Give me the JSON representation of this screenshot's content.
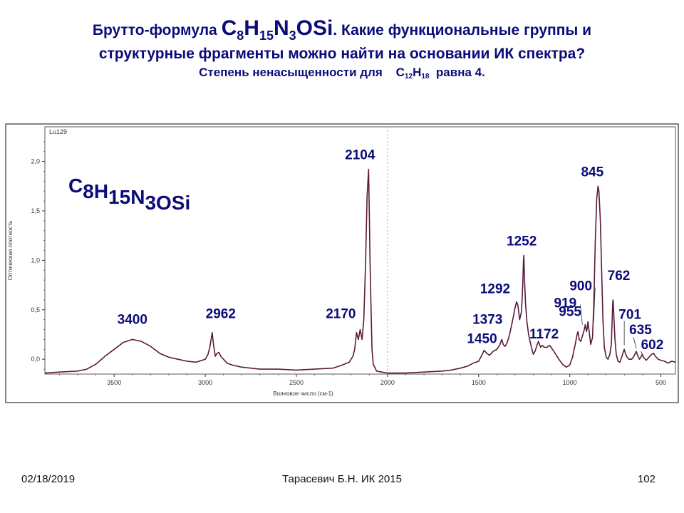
{
  "title": {
    "line1_prefix": "Брутто-формула ",
    "formula_parts": [
      {
        "t": "C",
        "s": "8"
      },
      {
        "t": "H",
        "s": "15"
      },
      {
        "t": "N",
        "s": "3"
      },
      {
        "t": "OSi",
        "s": ""
      }
    ],
    "line1_suffix": ". Какие функциональные группы и",
    "line2": "структурные фрагменты можно найти на основании ИК спектра?",
    "line3_prefix": "Степень ненасыщенности для    ",
    "line3_formula_parts": [
      {
        "t": "C",
        "s": "12"
      },
      {
        "t": "H",
        "s": "18"
      }
    ],
    "line3_suffix": "  равна 4."
  },
  "chart_data": {
    "type": "line",
    "sample_label": "Lu129",
    "formula_label_parts": [
      {
        "t": "C",
        "s": "8"
      },
      {
        "t": "H",
        "s": "15"
      },
      {
        "t": "N",
        "s": "3"
      },
      {
        "t": "OSi",
        "s": ""
      }
    ],
    "xlabel": "Волновое число (см-1)",
    "ylabel": "Оптическая плотность",
    "x_reversed": true,
    "xlim": [
      3880,
      420
    ],
    "ylim": [
      -0.15,
      2.35
    ],
    "xticks": [
      3500,
      3000,
      2500,
      2000,
      1500,
      1000,
      500
    ],
    "yticks": [
      {
        "v": 0.0,
        "label": "0,0"
      },
      {
        "v": 0.5,
        "label": "0,5"
      },
      {
        "v": 1.0,
        "label": "1,0"
      },
      {
        "v": 1.5,
        "label": "1,5"
      },
      {
        "v": 2.0,
        "label": "2,0"
      }
    ],
    "dashed_line_x": 2000,
    "line_color": "#5a1a3c",
    "label_color": "#0b0b7a",
    "series": [
      {
        "points": [
          [
            3880,
            -0.14
          ],
          [
            3800,
            -0.13
          ],
          [
            3700,
            -0.12
          ],
          [
            3650,
            -0.1
          ],
          [
            3600,
            -0.05
          ],
          [
            3550,
            0.03
          ],
          [
            3500,
            0.1
          ],
          [
            3450,
            0.17
          ],
          [
            3400,
            0.2
          ],
          [
            3350,
            0.18
          ],
          [
            3300,
            0.13
          ],
          [
            3250,
            0.06
          ],
          [
            3200,
            0.02
          ],
          [
            3150,
            0.0
          ],
          [
            3100,
            -0.02
          ],
          [
            3050,
            -0.03
          ],
          [
            3000,
            0.0
          ],
          [
            2985,
            0.05
          ],
          [
            2975,
            0.12
          ],
          [
            2962,
            0.27
          ],
          [
            2955,
            0.15
          ],
          [
            2945,
            0.03
          ],
          [
            2935,
            0.06
          ],
          [
            2925,
            0.07
          ],
          [
            2915,
            0.03
          ],
          [
            2900,
            0.0
          ],
          [
            2880,
            -0.04
          ],
          [
            2850,
            -0.06
          ],
          [
            2800,
            -0.08
          ],
          [
            2700,
            -0.1
          ],
          [
            2600,
            -0.1
          ],
          [
            2500,
            -0.11
          ],
          [
            2400,
            -0.1
          ],
          [
            2300,
            -0.09
          ],
          [
            2250,
            -0.06
          ],
          [
            2210,
            -0.03
          ],
          [
            2190,
            0.03
          ],
          [
            2180,
            0.1
          ],
          [
            2170,
            0.27
          ],
          [
            2160,
            0.2
          ],
          [
            2150,
            0.3
          ],
          [
            2140,
            0.2
          ],
          [
            2130,
            0.4
          ],
          [
            2120,
            1.0
          ],
          [
            2112,
            1.65
          ],
          [
            2106,
            1.85
          ],
          [
            2104,
            1.92
          ],
          [
            2100,
            1.5
          ],
          [
            2096,
            1.0
          ],
          [
            2090,
            0.5
          ],
          [
            2085,
            0.1
          ],
          [
            2078,
            -0.05
          ],
          [
            2060,
            -0.12
          ],
          [
            2000,
            -0.14
          ],
          [
            1900,
            -0.14
          ],
          [
            1800,
            -0.13
          ],
          [
            1700,
            -0.12
          ],
          [
            1650,
            -0.11
          ],
          [
            1600,
            -0.09
          ],
          [
            1560,
            -0.07
          ],
          [
            1530,
            -0.04
          ],
          [
            1500,
            -0.02
          ],
          [
            1480,
            0.05
          ],
          [
            1470,
            0.09
          ],
          [
            1455,
            0.06
          ],
          [
            1440,
            0.04
          ],
          [
            1420,
            0.08
          ],
          [
            1400,
            0.1
          ],
          [
            1385,
            0.14
          ],
          [
            1373,
            0.2
          ],
          [
            1365,
            0.15
          ],
          [
            1355,
            0.13
          ],
          [
            1345,
            0.16
          ],
          [
            1330,
            0.25
          ],
          [
            1315,
            0.38
          ],
          [
            1300,
            0.52
          ],
          [
            1292,
            0.58
          ],
          [
            1285,
            0.55
          ],
          [
            1275,
            0.4
          ],
          [
            1265,
            0.48
          ],
          [
            1258,
            0.75
          ],
          [
            1254,
            1.0
          ],
          [
            1252,
            1.05
          ],
          [
            1248,
            0.8
          ],
          [
            1242,
            0.55
          ],
          [
            1235,
            0.38
          ],
          [
            1225,
            0.24
          ],
          [
            1210,
            0.12
          ],
          [
            1200,
            0.05
          ],
          [
            1190,
            0.08
          ],
          [
            1180,
            0.14
          ],
          [
            1172,
            0.18
          ],
          [
            1160,
            0.12
          ],
          [
            1150,
            0.14
          ],
          [
            1140,
            0.12
          ],
          [
            1125,
            0.12
          ],
          [
            1110,
            0.14
          ],
          [
            1095,
            0.1
          ],
          [
            1080,
            0.06
          ],
          [
            1060,
            0.0
          ],
          [
            1040,
            -0.05
          ],
          [
            1020,
            -0.08
          ],
          [
            1000,
            -0.06
          ],
          [
            985,
            0.02
          ],
          [
            970,
            0.15
          ],
          [
            960,
            0.25
          ],
          [
            955,
            0.28
          ],
          [
            948,
            0.2
          ],
          [
            940,
            0.18
          ],
          [
            930,
            0.24
          ],
          [
            920,
            0.3
          ],
          [
            915,
            0.35
          ],
          [
            908,
            0.28
          ],
          [
            903,
            0.33
          ],
          [
            900,
            0.38
          ],
          [
            895,
            0.3
          ],
          [
            885,
            0.15
          ],
          [
            875,
            0.22
          ],
          [
            868,
            0.55
          ],
          [
            860,
            1.2
          ],
          [
            852,
            1.62
          ],
          [
            845,
            1.75
          ],
          [
            840,
            1.7
          ],
          [
            832,
            1.4
          ],
          [
            825,
            0.9
          ],
          [
            818,
            0.4
          ],
          [
            810,
            0.12
          ],
          [
            800,
            0.02
          ],
          [
            790,
            0.0
          ],
          [
            780,
            0.05
          ],
          [
            772,
            0.15
          ],
          [
            767,
            0.4
          ],
          [
            764,
            0.58
          ],
          [
            762,
            0.6
          ],
          [
            758,
            0.45
          ],
          [
            752,
            0.2
          ],
          [
            745,
            0.05
          ],
          [
            735,
            -0.02
          ],
          [
            725,
            -0.03
          ],
          [
            715,
            0.02
          ],
          [
            705,
            0.08
          ],
          [
            701,
            0.1
          ],
          [
            695,
            0.06
          ],
          [
            685,
            0.02
          ],
          [
            675,
            0.0
          ],
          [
            660,
            0.0
          ],
          [
            648,
            0.03
          ],
          [
            640,
            0.06
          ],
          [
            635,
            0.08
          ],
          [
            628,
            0.04
          ],
          [
            618,
            0.0
          ],
          [
            610,
            0.02
          ],
          [
            602,
            0.05
          ],
          [
            595,
            0.02
          ],
          [
            580,
            -0.01
          ],
          [
            565,
            0.02
          ],
          [
            550,
            0.05
          ],
          [
            540,
            0.06
          ],
          [
            530,
            0.03
          ],
          [
            515,
            0.0
          ],
          [
            500,
            -0.01
          ],
          [
            480,
            -0.02
          ],
          [
            460,
            -0.04
          ],
          [
            440,
            -0.02
          ],
          [
            420,
            -0.03
          ]
        ]
      }
    ],
    "peak_labels": [
      {
        "x": 3400,
        "y": 0.2,
        "text": "3400"
      },
      {
        "x": 2962,
        "y": 0.27,
        "text": "2962"
      },
      {
        "x": 2170,
        "y": 0.27,
        "text": "2170"
      },
      {
        "x": 2104,
        "y": 1.92,
        "text": "2104"
      },
      {
        "x": 1450,
        "y": 0.09,
        "text": "1450"
      },
      {
        "x": 1373,
        "y": 0.2,
        "text": "1373"
      },
      {
        "x": 1292,
        "y": 0.58,
        "text": "1292"
      },
      {
        "x": 1252,
        "y": 1.05,
        "text": "1252"
      },
      {
        "x": 1172,
        "y": 0.18,
        "text": "1172"
      },
      {
        "x": 955,
        "y": 0.28,
        "text": "955"
      },
      {
        "x": 919,
        "y": 0.35,
        "text": "919"
      },
      {
        "x": 900,
        "y": 0.38,
        "text": "900"
      },
      {
        "x": 845,
        "y": 1.75,
        "text": "845"
      },
      {
        "x": 762,
        "y": 0.6,
        "text": "762"
      },
      {
        "x": 701,
        "y": 0.1,
        "text": "701"
      },
      {
        "x": 635,
        "y": 0.08,
        "text": "635"
      },
      {
        "x": 602,
        "y": 0.05,
        "text": "602"
      }
    ]
  },
  "footer": {
    "date": "02/18/2019",
    "author": "Тарасевич Б.Н.  ИК 2015",
    "page": "102"
  }
}
